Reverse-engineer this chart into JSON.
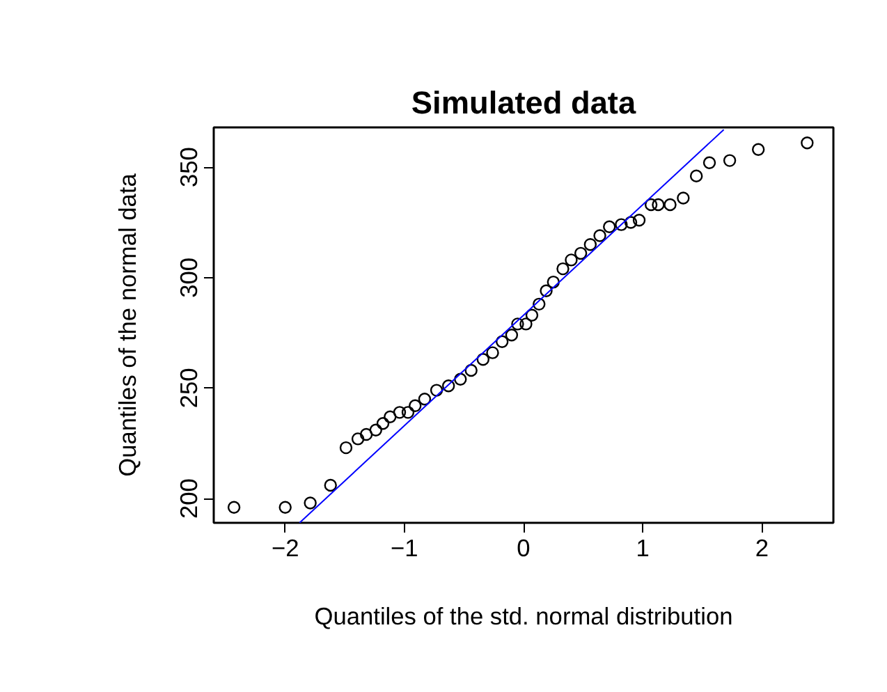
{
  "chart_data": {
    "type": "scatter",
    "title": "Simulated data",
    "xlabel": "Quantiles of the std. normal distribution",
    "ylabel": "Quantiles of the normal data",
    "grid": false,
    "xlim": [
      -2.6,
      2.6
    ],
    "ylim": [
      189,
      368
    ],
    "xticks": [
      -2,
      -1,
      0,
      1,
      2
    ],
    "yticks": [
      200,
      250,
      300,
      350
    ],
    "series": [
      {
        "marker": "circle",
        "color": "#000000",
        "x": [
          -2.43,
          -2.0,
          -1.79,
          -1.62,
          -1.49,
          -1.39,
          -1.32,
          -1.24,
          -1.18,
          -1.12,
          -1.04,
          -0.97,
          -0.91,
          -0.83,
          -0.73,
          -0.63,
          -0.53,
          -0.44,
          -0.34,
          -0.26,
          -0.18,
          -0.1,
          -0.05,
          0.02,
          0.07,
          0.13,
          0.19,
          0.25,
          0.33,
          0.4,
          0.48,
          0.56,
          0.64,
          0.72,
          0.82,
          0.9,
          0.97,
          1.07,
          1.13,
          1.23,
          1.34,
          1.45,
          1.56,
          1.73,
          1.97,
          2.38
        ],
        "values": [
          196,
          196,
          198,
          206,
          223,
          227,
          229,
          231,
          234,
          237,
          239,
          239,
          242,
          245,
          249,
          251,
          254,
          258,
          263,
          266,
          271,
          274,
          279,
          279,
          283,
          288,
          294,
          298,
          304,
          308,
          311,
          315,
          319,
          323,
          324,
          325,
          326,
          333,
          333,
          333,
          336,
          346,
          352,
          353,
          358,
          361
        ]
      },
      {
        "type": "line",
        "color": "#0000ff",
        "x": [
          -1.88,
          1.68
        ],
        "values": [
          189,
          367
        ]
      }
    ]
  }
}
